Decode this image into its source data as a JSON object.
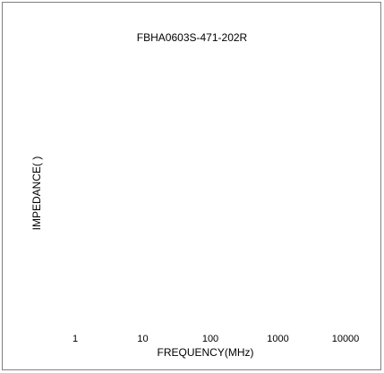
{
  "chart_data": {
    "type": "line",
    "title": "FBHA0603S-471-202R",
    "xlabel": "FREQUENCY(MHz)",
    "ylabel": "IMPEDANCE( )",
    "x_scale": "log",
    "x_ticks": [
      "1",
      "10",
      "100",
      "1000",
      "10000"
    ],
    "series": [],
    "grid": false
  },
  "colors": {
    "frame_border": "#808080",
    "text": "#000000",
    "background": "#ffffff"
  }
}
